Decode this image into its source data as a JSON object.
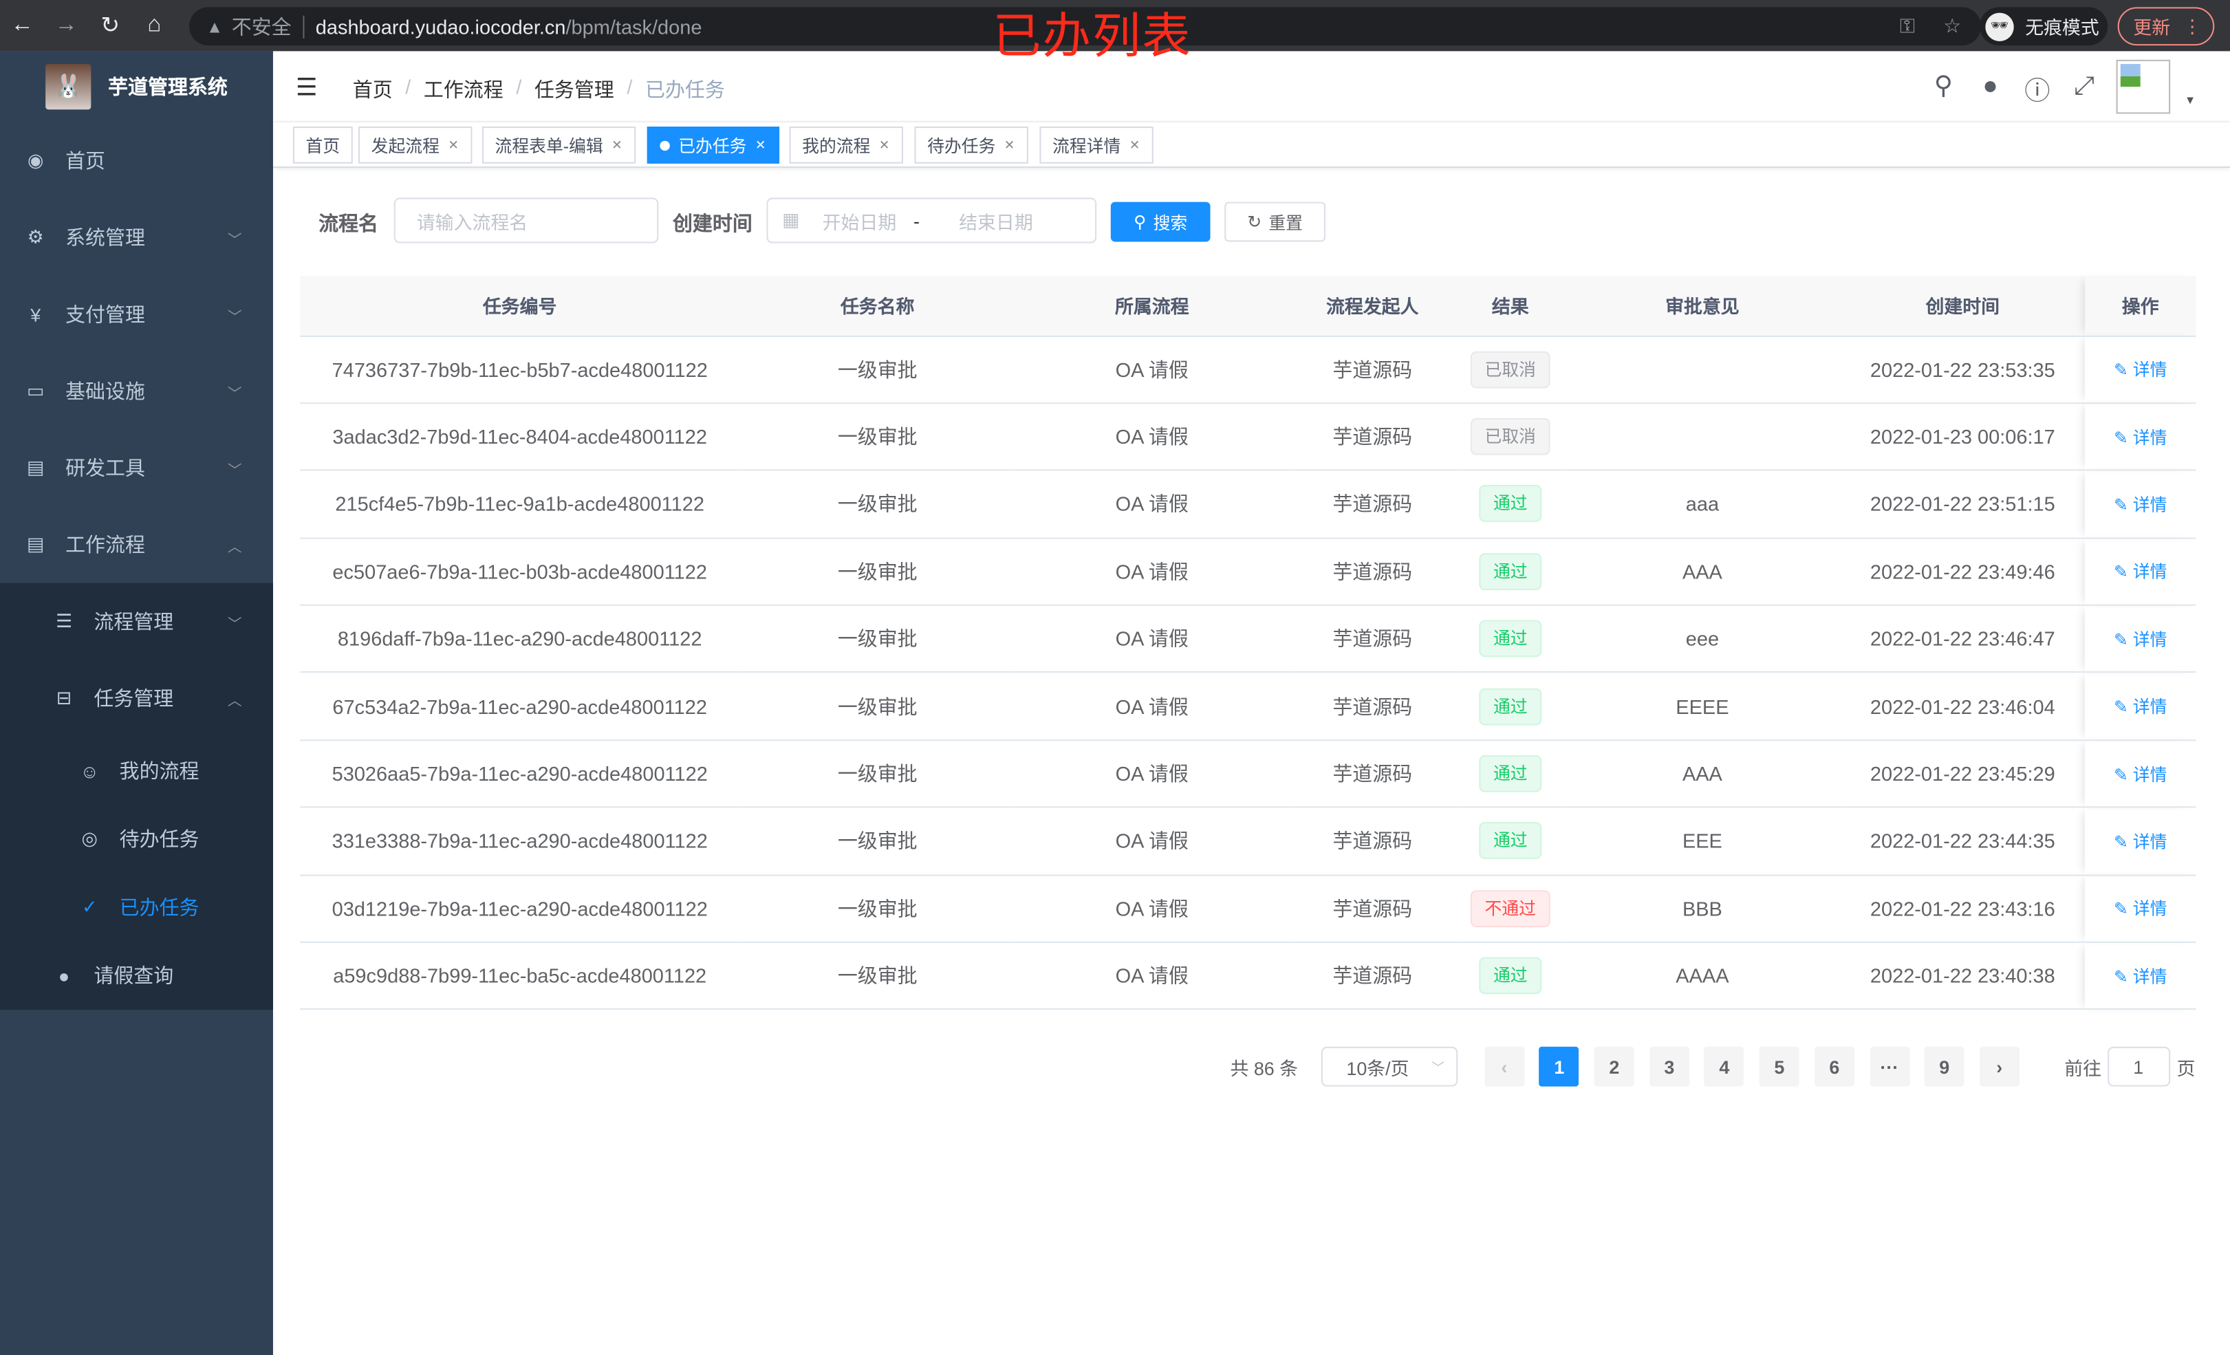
{
  "browser": {
    "security": "不安全",
    "url_host": "dashboard.yudao.iocoder.cn",
    "url_path": "/bpm/task/done",
    "incognito": "无痕模式",
    "update": "更新"
  },
  "overlay_title": "已办列表",
  "sidebar": {
    "title": "芋道管理系统",
    "items": [
      {
        "label": "首页",
        "icon": "dashboard-icon"
      },
      {
        "label": "系统管理",
        "icon": "gear-icon"
      },
      {
        "label": "支付管理",
        "icon": "yen-icon"
      },
      {
        "label": "基础设施",
        "icon": "monitor-icon"
      },
      {
        "label": "研发工具",
        "icon": "toolbox-icon"
      },
      {
        "label": "工作流程",
        "icon": "toolbox-icon"
      }
    ],
    "workflow_children": [
      {
        "label": "流程管理",
        "icon": "list-icon"
      },
      {
        "label": "任务管理",
        "icon": "tree-icon"
      }
    ],
    "task_children": [
      {
        "label": "我的流程",
        "icon": "user-icon"
      },
      {
        "label": "待办任务",
        "icon": "eye-icon"
      },
      {
        "label": "已办任务",
        "icon": "done-icon"
      }
    ],
    "leave": {
      "label": "请假查询",
      "icon": "person-icon"
    }
  },
  "breadcrumb": [
    "首页",
    "工作流程",
    "任务管理",
    "已办任务"
  ],
  "tags": [
    {
      "label": "首页"
    },
    {
      "label": "发起流程"
    },
    {
      "label": "流程表单-编辑"
    },
    {
      "label": "已办任务",
      "active": true
    },
    {
      "label": "我的流程"
    },
    {
      "label": "待办任务"
    },
    {
      "label": "流程详情"
    }
  ],
  "search": {
    "name_label": "流程名",
    "name_placeholder": "请输入流程名",
    "time_label": "创建时间",
    "start_placeholder": "开始日期",
    "range_sep": "-",
    "end_placeholder": "结束日期",
    "search_btn": "搜索",
    "reset_btn": "重置"
  },
  "table": {
    "columns": [
      "任务编号",
      "任务名称",
      "所属流程",
      "流程发起人",
      "结果",
      "审批意见",
      "创建时间",
      "操作"
    ],
    "detail_label": "详情",
    "rows": [
      [
        "74736737-7b9b-11ec-b5b7-acde48001122",
        "一级审批",
        "OA 请假",
        "芋道源码",
        "已取消",
        "",
        "2022-01-22 23:53:35"
      ],
      [
        "3adac3d2-7b9d-11ec-8404-acde48001122",
        "一级审批",
        "OA 请假",
        "芋道源码",
        "已取消",
        "",
        "2022-01-23 00:06:17"
      ],
      [
        "215cf4e5-7b9b-11ec-9a1b-acde48001122",
        "一级审批",
        "OA 请假",
        "芋道源码",
        "通过",
        "aaa",
        "2022-01-22 23:51:15"
      ],
      [
        "ec507ae6-7b9a-11ec-b03b-acde48001122",
        "一级审批",
        "OA 请假",
        "芋道源码",
        "通过",
        "AAA",
        "2022-01-22 23:49:46"
      ],
      [
        "8196daff-7b9a-11ec-a290-acde48001122",
        "一级审批",
        "OA 请假",
        "芋道源码",
        "通过",
        "eee",
        "2022-01-22 23:46:47"
      ],
      [
        "67c534a2-7b9a-11ec-a290-acde48001122",
        "一级审批",
        "OA 请假",
        "芋道源码",
        "通过",
        "EEEE",
        "2022-01-22 23:46:04"
      ],
      [
        "53026aa5-7b9a-11ec-a290-acde48001122",
        "一级审批",
        "OA 请假",
        "芋道源码",
        "通过",
        "AAA",
        "2022-01-22 23:45:29"
      ],
      [
        "331e3388-7b9a-11ec-a290-acde48001122",
        "一级审批",
        "OA 请假",
        "芋道源码",
        "通过",
        "EEE",
        "2022-01-22 23:44:35"
      ],
      [
        "03d1219e-7b9a-11ec-a290-acde48001122",
        "一级审批",
        "OA 请假",
        "芋道源码",
        "不通过",
        "BBB",
        "2022-01-22 23:43:16"
      ],
      [
        "a59c9d88-7b99-11ec-ba5c-acde48001122",
        "一级审批",
        "OA 请假",
        "芋道源码",
        "通过",
        "AAAA",
        "2022-01-22 23:40:38"
      ]
    ]
  },
  "pagination": {
    "total": "共 86 条",
    "page_size": "10条/页",
    "pages": [
      "1",
      "2",
      "3",
      "4",
      "5",
      "6",
      "···",
      "9"
    ],
    "current": "1",
    "goto_label": "前往",
    "goto_value": "1",
    "goto_suffix": "页"
  },
  "colors": {
    "sidebar": "#304156",
    "submenu": "#1f2d3d",
    "primary": "#1890ff",
    "pass": "#13ce66",
    "fail": "#ff4949"
  }
}
